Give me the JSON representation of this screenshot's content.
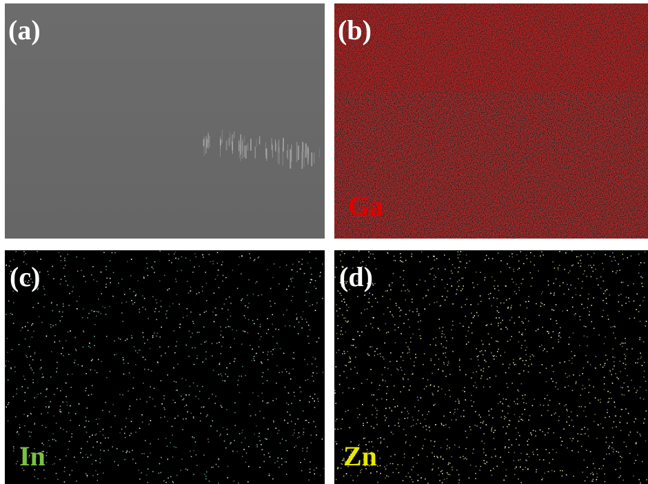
{
  "panels": [
    {
      "label": "(a)"
    },
    {
      "label": "(b)",
      "element": "Ga"
    },
    {
      "label": "(c)",
      "element": "In"
    },
    {
      "label": "(d)",
      "element": "Zn"
    }
  ]
}
